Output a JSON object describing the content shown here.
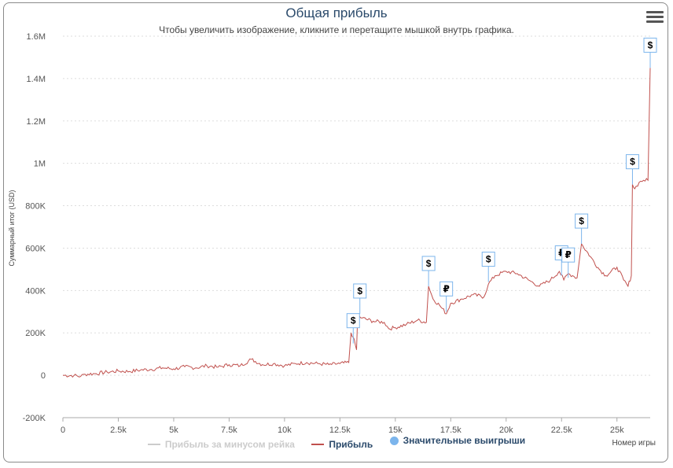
{
  "chart_data": {
    "type": "line",
    "title": "Общая прибыль",
    "subtitle": "Чтобы увеличить изображение, кликните и перетащите мышкой внутрь графика.",
    "xlabel": "Номер игры",
    "ylabel": "Суммарный итог (USD)",
    "xlim": [
      0,
      26500
    ],
    "ylim": [
      -200000,
      1600000
    ],
    "x_ticks": [
      "0",
      "2.5k",
      "5k",
      "7.5k",
      "10k",
      "12.5k",
      "15k",
      "17.5k",
      "20k",
      "22.5k",
      "25k"
    ],
    "y_ticks": [
      "-200K",
      "0",
      "200K",
      "400K",
      "600K",
      "800K",
      "1M",
      "1.2M",
      "1.4M",
      "1.6M"
    ],
    "grid": true,
    "legend_position": "bottom",
    "colors": {
      "profit": "#c0504d",
      "rake": "#cccccc",
      "wins": "#7cb5ec",
      "title": "#2b4a6b"
    },
    "series": [
      {
        "name": "Прибыль",
        "points": [
          [
            0,
            0
          ],
          [
            500,
            -1000
          ],
          [
            800,
            -5000
          ],
          [
            1000,
            5000
          ],
          [
            1500,
            8000
          ],
          [
            2000,
            15000
          ],
          [
            2500,
            20000
          ],
          [
            3000,
            18000
          ],
          [
            3500,
            25000
          ],
          [
            4000,
            28000
          ],
          [
            4500,
            35000
          ],
          [
            5000,
            30000
          ],
          [
            5500,
            40000
          ],
          [
            6000,
            35000
          ],
          [
            6500,
            45000
          ],
          [
            7000,
            38000
          ],
          [
            7500,
            50000
          ],
          [
            8000,
            45000
          ],
          [
            8500,
            75000
          ],
          [
            9000,
            50000
          ],
          [
            9500,
            55000
          ],
          [
            10000,
            45000
          ],
          [
            10500,
            55000
          ],
          [
            11000,
            60000
          ],
          [
            11500,
            55000
          ],
          [
            12000,
            50000
          ],
          [
            12500,
            55000
          ],
          [
            12900,
            60000
          ],
          [
            13000,
            200000
          ],
          [
            13100,
            180000
          ],
          [
            13250,
            120000
          ],
          [
            13300,
            280000
          ],
          [
            13500,
            270000
          ],
          [
            14000,
            255000
          ],
          [
            14500,
            250000
          ],
          [
            14700,
            220000
          ],
          [
            15000,
            225000
          ],
          [
            15500,
            240000
          ],
          [
            16000,
            260000
          ],
          [
            16400,
            250000
          ],
          [
            16500,
            420000
          ],
          [
            16700,
            360000
          ],
          [
            17000,
            330000
          ],
          [
            17300,
            290000
          ],
          [
            17500,
            340000
          ],
          [
            18000,
            360000
          ],
          [
            18500,
            380000
          ],
          [
            19000,
            370000
          ],
          [
            19200,
            430000
          ],
          [
            19500,
            470000
          ],
          [
            20000,
            490000
          ],
          [
            20500,
            480000
          ],
          [
            21000,
            450000
          ],
          [
            21500,
            420000
          ],
          [
            22000,
            450000
          ],
          [
            22400,
            490000
          ],
          [
            22600,
            450000
          ],
          [
            22800,
            480000
          ],
          [
            23000,
            470000
          ],
          [
            23200,
            460000
          ],
          [
            23400,
            620000
          ],
          [
            23800,
            560000
          ],
          [
            24200,
            500000
          ],
          [
            24500,
            470000
          ],
          [
            25000,
            510000
          ],
          [
            25300,
            450000
          ],
          [
            25500,
            420000
          ],
          [
            25650,
            470000
          ],
          [
            25700,
            900000
          ],
          [
            25800,
            880000
          ],
          [
            26000,
            910000
          ],
          [
            26200,
            920000
          ],
          [
            26400,
            920000
          ],
          [
            26500,
            1450000
          ]
        ]
      },
      {
        "name": "Прибыль за минусом рейка",
        "hidden": true,
        "points": []
      }
    ],
    "flags": [
      {
        "x": 13100,
        "y": 150000,
        "label": "$"
      },
      {
        "x": 13400,
        "y": 290000,
        "label": "$"
      },
      {
        "x": 16500,
        "y": 420000,
        "label": "$"
      },
      {
        "x": 17300,
        "y": 300000,
        "label": "₽"
      },
      {
        "x": 19200,
        "y": 440000,
        "label": "$"
      },
      {
        "x": 22500,
        "y": 470000,
        "label": "₽"
      },
      {
        "x": 22800,
        "y": 460000,
        "label": "₽"
      },
      {
        "x": 23400,
        "y": 620000,
        "label": "$"
      },
      {
        "x": 25700,
        "y": 900000,
        "label": "$"
      },
      {
        "x": 26500,
        "y": 1450000,
        "label": "$"
      }
    ]
  },
  "legend": {
    "rake": "Прибыль за минусом рейка",
    "profit": "Прибыль",
    "wins": "Значительные выигрыши"
  },
  "menu_icon": "hamburger-icon"
}
